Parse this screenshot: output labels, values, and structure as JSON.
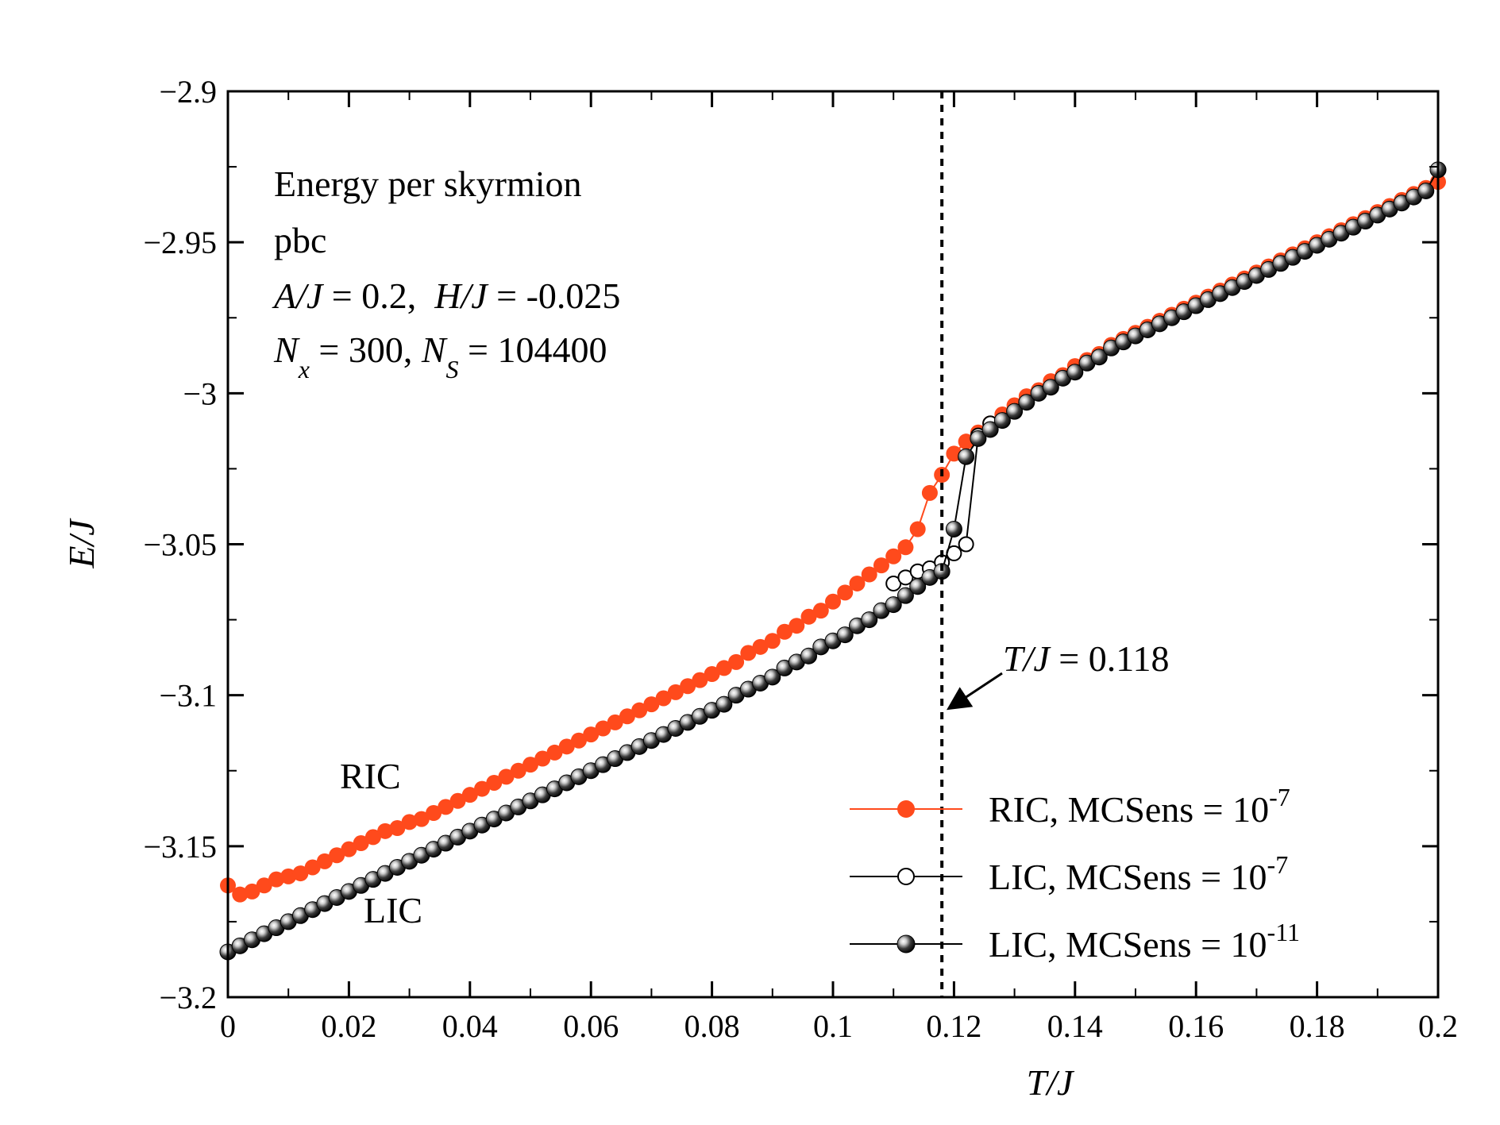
{
  "chart_data": {
    "type": "line",
    "title": "",
    "xlabel": "T/J",
    "ylabel": "E/J",
    "xlim": [
      0,
      0.2
    ],
    "ylim": [
      -3.2,
      -2.9
    ],
    "x_ticks": [
      0,
      0.02,
      0.04,
      0.06,
      0.08,
      0.1,
      0.12,
      0.14,
      0.16,
      0.18,
      0.2
    ],
    "x_tick_labels": [
      "0",
      "0.02",
      "0.04",
      "0.06",
      "0.08",
      "0.1",
      "0.12",
      "0.14",
      "0.16",
      "0.18",
      "0.2"
    ],
    "y_ticks": [
      -3.2,
      -3.15,
      -3.1,
      -3.05,
      -3.0,
      -2.95,
      -2.9
    ],
    "y_tick_labels": [
      "−3.2",
      "−3.15",
      "−3.1",
      "−3.05",
      "−3",
      "−2.95",
      "−2.9"
    ],
    "grid": false,
    "legend_position": "bottom-right",
    "annotations": {
      "info_line1": "Energy per skyrmion",
      "info_line2": "pbc",
      "info_line3_A": "A/J",
      "info_line3_Aval": " = 0.2,  ",
      "info_line3_H": "H/J",
      "info_line3_Hval": " = -0.025",
      "info_line4_N": "N",
      "info_line4_x": "x",
      "info_line4_mid": " = 300, ",
      "info_line4_N2": "N",
      "info_line4_S": "S",
      "info_line4_end": " = 104400",
      "ric_label": "RIC",
      "lic_label": "LIC",
      "transition_var": "T/J",
      "transition_eq": " = 0.118",
      "transition_x": 0.118
    },
    "series": [
      {
        "name": "RIC, MCSens = 10-7",
        "legend_base": "RIC, MCSens = 10",
        "legend_exp": "-7",
        "color": "#ff4a1c",
        "marker": "filled-orange",
        "x": [
          0.0,
          0.002,
          0.004,
          0.006,
          0.008,
          0.01,
          0.012,
          0.014,
          0.016,
          0.018,
          0.02,
          0.022,
          0.024,
          0.026,
          0.028,
          0.03,
          0.032,
          0.034,
          0.036,
          0.038,
          0.04,
          0.042,
          0.044,
          0.046,
          0.048,
          0.05,
          0.052,
          0.054,
          0.056,
          0.058,
          0.06,
          0.062,
          0.064,
          0.066,
          0.068,
          0.07,
          0.072,
          0.074,
          0.076,
          0.078,
          0.08,
          0.082,
          0.084,
          0.086,
          0.088,
          0.09,
          0.092,
          0.094,
          0.096,
          0.098,
          0.1,
          0.102,
          0.104,
          0.106,
          0.108,
          0.11,
          0.112,
          0.114,
          0.116,
          0.118,
          0.12,
          0.122,
          0.124,
          0.126,
          0.128,
          0.13,
          0.132,
          0.134,
          0.136,
          0.138,
          0.14,
          0.142,
          0.144,
          0.146,
          0.148,
          0.15,
          0.152,
          0.154,
          0.156,
          0.158,
          0.16,
          0.162,
          0.164,
          0.166,
          0.168,
          0.17,
          0.172,
          0.174,
          0.176,
          0.178,
          0.18,
          0.182,
          0.184,
          0.186,
          0.188,
          0.19,
          0.192,
          0.194,
          0.196,
          0.198,
          0.2
        ],
        "y": [
          -3.163,
          -3.166,
          -3.165,
          -3.163,
          -3.161,
          -3.16,
          -3.159,
          -3.157,
          -3.155,
          -3.153,
          -3.151,
          -3.149,
          -3.147,
          -3.145,
          -3.144,
          -3.142,
          -3.141,
          -3.139,
          -3.137,
          -3.135,
          -3.133,
          -3.131,
          -3.129,
          -3.127,
          -3.125,
          -3.123,
          -3.121,
          -3.119,
          -3.117,
          -3.115,
          -3.113,
          -3.111,
          -3.109,
          -3.107,
          -3.105,
          -3.103,
          -3.101,
          -3.099,
          -3.097,
          -3.095,
          -3.093,
          -3.091,
          -3.089,
          -3.086,
          -3.084,
          -3.082,
          -3.079,
          -3.077,
          -3.074,
          -3.072,
          -3.069,
          -3.066,
          -3.063,
          -3.06,
          -3.057,
          -3.054,
          -3.051,
          -3.045,
          -3.033,
          -3.027,
          -3.02,
          -3.016,
          -3.013,
          -3.01,
          -3.007,
          -3.004,
          -3.001,
          -2.999,
          -2.996,
          -2.994,
          -2.991,
          -2.989,
          -2.987,
          -2.984,
          -2.982,
          -2.98,
          -2.978,
          -2.976,
          -2.974,
          -2.972,
          -2.97,
          -2.968,
          -2.966,
          -2.964,
          -2.962,
          -2.96,
          -2.958,
          -2.956,
          -2.954,
          -2.952,
          -2.95,
          -2.948,
          -2.946,
          -2.944,
          -2.942,
          -2.94,
          -2.938,
          -2.936,
          -2.934,
          -2.932,
          -2.93
        ]
      },
      {
        "name": "LIC, MCSens = 10-7",
        "legend_base": "LIC, MCSens = 10",
        "legend_exp": "-7",
        "color": "#000000",
        "marker": "open-circle",
        "x": [
          0.11,
          0.112,
          0.114,
          0.116,
          0.118,
          0.12,
          0.122,
          0.124,
          0.126
        ],
        "y": [
          -3.063,
          -3.061,
          -3.059,
          -3.058,
          -3.056,
          -3.053,
          -3.05,
          -3.014,
          -3.01
        ]
      },
      {
        "name": "LIC, MCSens = 10-11",
        "legend_base": "LIC, MCSens = 10",
        "legend_exp": "-11",
        "color": "#000000",
        "marker": "filled-sphere",
        "x": [
          0.0,
          0.002,
          0.004,
          0.006,
          0.008,
          0.01,
          0.012,
          0.014,
          0.016,
          0.018,
          0.02,
          0.022,
          0.024,
          0.026,
          0.028,
          0.03,
          0.032,
          0.034,
          0.036,
          0.038,
          0.04,
          0.042,
          0.044,
          0.046,
          0.048,
          0.05,
          0.052,
          0.054,
          0.056,
          0.058,
          0.06,
          0.062,
          0.064,
          0.066,
          0.068,
          0.07,
          0.072,
          0.074,
          0.076,
          0.078,
          0.08,
          0.082,
          0.084,
          0.086,
          0.088,
          0.09,
          0.092,
          0.094,
          0.096,
          0.098,
          0.1,
          0.102,
          0.104,
          0.106,
          0.108,
          0.11,
          0.112,
          0.114,
          0.116,
          0.118,
          0.12,
          0.122,
          0.124,
          0.126,
          0.128,
          0.13,
          0.132,
          0.134,
          0.136,
          0.138,
          0.14,
          0.142,
          0.144,
          0.146,
          0.148,
          0.15,
          0.152,
          0.154,
          0.156,
          0.158,
          0.16,
          0.162,
          0.164,
          0.166,
          0.168,
          0.17,
          0.172,
          0.174,
          0.176,
          0.178,
          0.18,
          0.182,
          0.184,
          0.186,
          0.188,
          0.19,
          0.192,
          0.194,
          0.196,
          0.198,
          0.2
        ],
        "y": [
          -3.185,
          -3.183,
          -3.181,
          -3.179,
          -3.177,
          -3.175,
          -3.173,
          -3.171,
          -3.169,
          -3.167,
          -3.165,
          -3.163,
          -3.161,
          -3.159,
          -3.157,
          -3.155,
          -3.153,
          -3.151,
          -3.149,
          -3.147,
          -3.145,
          -3.143,
          -3.141,
          -3.139,
          -3.137,
          -3.135,
          -3.133,
          -3.131,
          -3.129,
          -3.127,
          -3.125,
          -3.123,
          -3.121,
          -3.119,
          -3.117,
          -3.115,
          -3.113,
          -3.111,
          -3.109,
          -3.107,
          -3.105,
          -3.103,
          -3.1,
          -3.098,
          -3.096,
          -3.094,
          -3.091,
          -3.089,
          -3.087,
          -3.084,
          -3.082,
          -3.08,
          -3.077,
          -3.075,
          -3.072,
          -3.07,
          -3.067,
          -3.064,
          -3.061,
          -3.059,
          -3.045,
          -3.021,
          -3.015,
          -3.012,
          -3.009,
          -3.006,
          -3.003,
          -3.0,
          -2.998,
          -2.995,
          -2.993,
          -2.99,
          -2.988,
          -2.985,
          -2.983,
          -2.981,
          -2.979,
          -2.977,
          -2.975,
          -2.973,
          -2.971,
          -2.969,
          -2.967,
          -2.965,
          -2.963,
          -2.961,
          -2.959,
          -2.957,
          -2.955,
          -2.953,
          -2.951,
          -2.949,
          -2.947,
          -2.945,
          -2.943,
          -2.941,
          -2.939,
          -2.937,
          -2.935,
          -2.933,
          -2.926
        ]
      }
    ]
  }
}
